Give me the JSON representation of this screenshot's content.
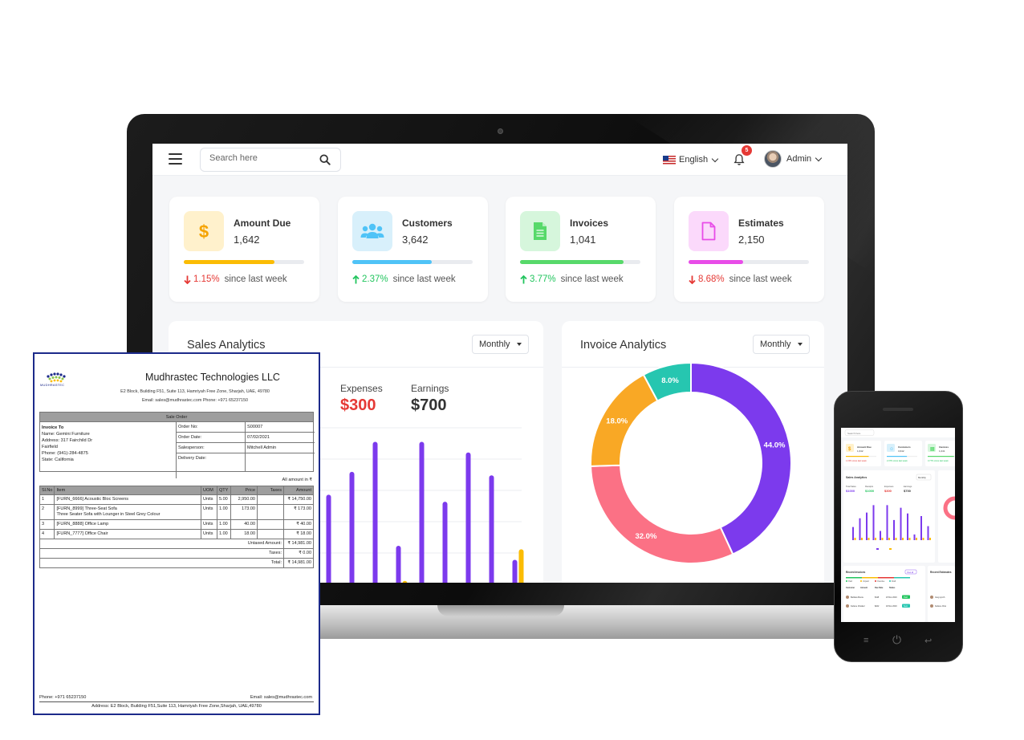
{
  "header": {
    "search_placeholder": "Search here",
    "language": "English",
    "notifications": "5",
    "user": "Admin"
  },
  "stats": [
    {
      "title": "Amount Due",
      "value": "1,642",
      "change": "1.15%",
      "direction": "down",
      "since": "since last week",
      "progress": 0.75,
      "color": "#fbbc04",
      "icon_bg": "#fff1cc",
      "icon": "dollar-icon"
    },
    {
      "title": "Customers",
      "value": "3,642",
      "change": "2.37%",
      "direction": "up",
      "since": "since last week",
      "progress": 0.66,
      "color": "#4fc3f7",
      "icon_bg": "#d8f0fb",
      "icon": "users-icon"
    },
    {
      "title": "Invoices",
      "value": "1,041",
      "change": "3.77%",
      "direction": "up",
      "since": "since last week",
      "progress": 0.86,
      "color": "#57d96a",
      "icon_bg": "#d6f6dc",
      "icon": "document-icon"
    },
    {
      "title": "Estimates",
      "value": "2,150",
      "change": "8.68%",
      "direction": "down",
      "since": "since last week",
      "progress": 0.45,
      "color": "#e84ce8",
      "icon_bg": "#fbd9fb",
      "icon": "file-icon"
    }
  ],
  "sales": {
    "title": "Sales Analytics",
    "period": "Monthly",
    "kpis": [
      {
        "label": "Expenses",
        "value": "$300",
        "color": "#e53935"
      },
      {
        "label": "Earnings",
        "value": "$700",
        "color": "#333333"
      }
    ]
  },
  "invoice_analytics": {
    "title": "Invoice Analytics",
    "period": "Monthly"
  },
  "chart_data": [
    {
      "type": "bar",
      "series": [
        {
          "values": [
            3,
            5,
            6.3,
            8,
            2.1,
            8,
            4.6,
            7.4,
            6.1,
            1.3
          ]
        },
        {
          "values": [
            0.4,
            0,
            0,
            0,
            0.1,
            0,
            0,
            0,
            0,
            1.9
          ]
        }
      ],
      "colors": [
        "#7c3aed",
        "#fbbc04"
      ]
    },
    {
      "type": "pie",
      "donut": true,
      "labels": [
        "44.0%",
        "32.0%",
        "18.0%",
        "8.0%"
      ],
      "values": [
        44,
        32,
        18,
        8
      ],
      "colors": [
        "#7c3aed",
        "#fb7185",
        "#f9a825",
        "#26c6b0"
      ]
    }
  ],
  "invoice_doc": {
    "company": "Mudhrastec Technologies LLC",
    "logo_text": "MUDHRASTEC",
    "address": "E2 Block, Building F51, Suite 113, Hamriyah Free Zone, Sharjah, UAE, 49780",
    "contact": "Email: sales@mudhrastec.com Phone: +971 65237150",
    "section": "Sale Order",
    "invoice_to_label": "Invoice To",
    "invoice_to": [
      "Name: Gemini Furniture",
      "Address: 317 Fairchild Dr",
      "Fairfield",
      "Phone: (941)-284-4875",
      "State: California"
    ],
    "order": [
      {
        "k": "Order No:",
        "v": "S00007"
      },
      {
        "k": "Order Date:",
        "v": "07/02/2021"
      },
      {
        "k": "Salesperson:",
        "v": "Mitchell Admin"
      },
      {
        "k": "Delivery Date:",
        "v": ""
      }
    ],
    "all_amount": "All amount in ₹",
    "columns": [
      "Sl.No",
      "Item",
      "UOM",
      "QTY",
      "Price",
      "Taxes",
      "Amount"
    ],
    "rows": [
      {
        "no": "1",
        "item": "[FURN_6666] Acoustic Bloc Screens",
        "item2": "",
        "uom": "Units",
        "qty": "5.00",
        "price": "2,950.00",
        "taxes": "",
        "amount": "₹ 14,750.00"
      },
      {
        "no": "2",
        "item": "[FURN_8999] Three-Seat Sofa",
        "item2": "Three Seater Sofa with Lounger in Steel Grey Colour",
        "uom": "Units",
        "qty": "1.00",
        "price": "173.00",
        "taxes": "",
        "amount": "₹ 173.00"
      },
      {
        "no": "3",
        "item": "[FURN_8888] Office Lamp",
        "item2": "",
        "uom": "Units",
        "qty": "1.00",
        "price": "40.00",
        "taxes": "",
        "amount": "₹ 40.00"
      },
      {
        "no": "4",
        "item": "[FURN_7777] Office Chair",
        "item2": "",
        "uom": "Units",
        "qty": "1.00",
        "price": "18.00",
        "taxes": "",
        "amount": "₹ 18.00"
      }
    ],
    "totals": [
      {
        "k": "Untaxed Amount:",
        "v": "₹ 14,981.00"
      },
      {
        "k": "Taxes:",
        "v": "₹ 0.00"
      },
      {
        "k": "Total:",
        "v": "₹ 14,981.00"
      }
    ],
    "footer_phone": "Phone: +971 65237150",
    "footer_email": "Email: sales@mudhrastec.com",
    "footer_address": "Address: E2 Block, Building F51,Suite 113, Hamriyah Free Zone,Sharjah, UAE,49780"
  },
  "phone_ui": {
    "search_placeholder": "Search here",
    "stats": [
      {
        "title": "Amount Due",
        "value": "1,642",
        "change": "1.15%",
        "since": "since last week",
        "icon": "$"
      },
      {
        "title": "Customers",
        "value": "3,642",
        "change": "2.37%",
        "since": "since last week",
        "icon": "☺"
      },
      {
        "title": "Invoices",
        "value": "1,041",
        "change": "3.77%",
        "since": "since last week",
        "icon": "▤"
      }
    ],
    "sales_title": "Sales Analytics",
    "sales_period": "Monthly",
    "kpis": [
      {
        "label": "Total Sales",
        "value": "$1000",
        "color": "#7c3aed"
      },
      {
        "label": "Receipts",
        "value": "$1000",
        "color": "#22c55e"
      },
      {
        "label": "Expenses",
        "value": "$300",
        "color": "#e53935"
      },
      {
        "label": "Earnings",
        "value": "$700",
        "color": "#333333"
      }
    ],
    "recent_invoices": "Recent Invoices",
    "view_all": "View all",
    "recent_estimates": "Recent Estimates",
    "legend": [
      "Paid",
      "Unpaid",
      "Overdue",
      "Draft"
    ],
    "table_headers": [
      "Customer",
      "Amount",
      "Due Date",
      "Status"
    ],
    "rows": [
      {
        "name": "Barbara Moore",
        "amount": "$118",
        "date": "23 Nov 2019",
        "status": "Paid"
      },
      {
        "name": "Karlene Chaidez",
        "amount": "$222",
        "date": "18 Nov 2019",
        "status": "Sent"
      }
    ],
    "estimate_names": [
      "Greg Lynch",
      "Karlene Chai"
    ]
  }
}
